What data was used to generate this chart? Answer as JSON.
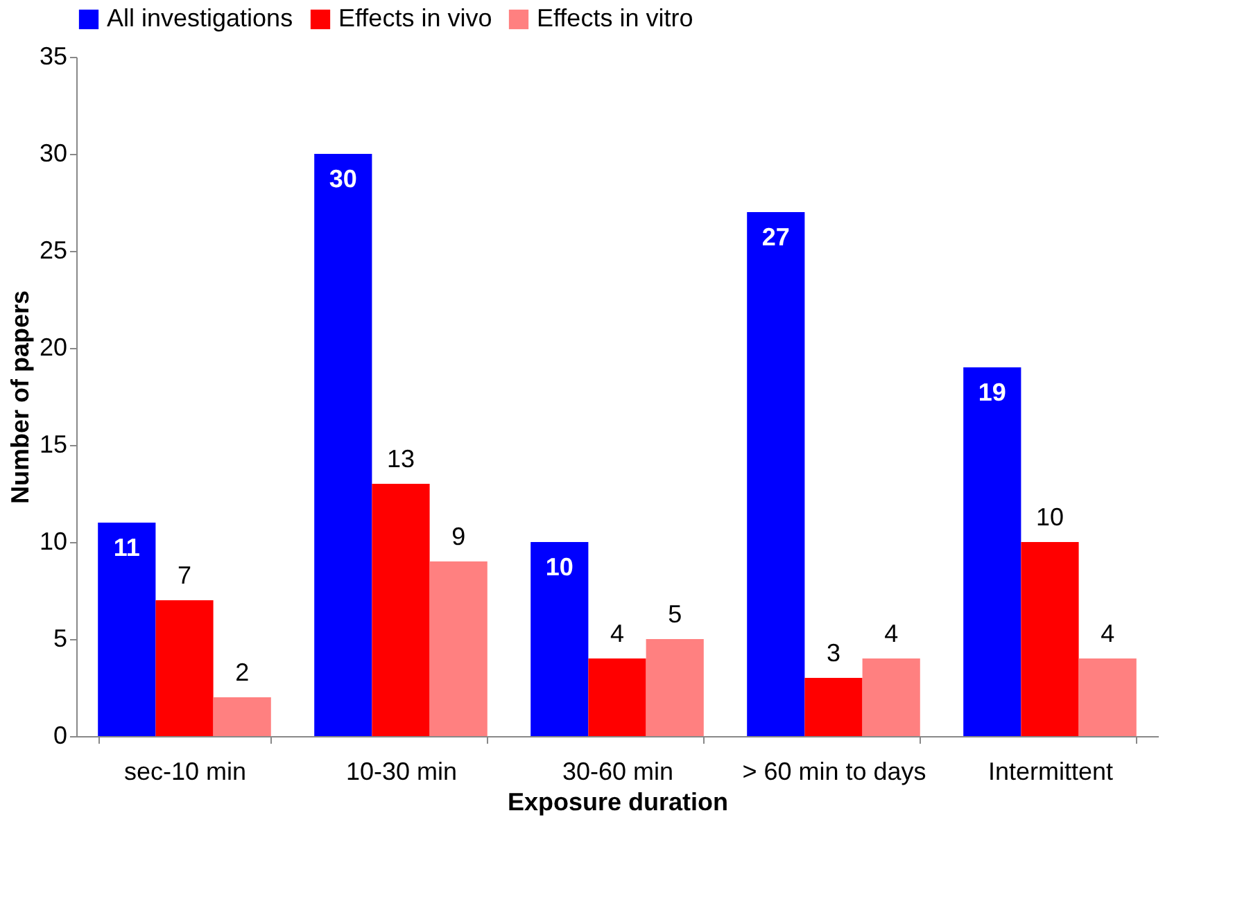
{
  "chart_data": {
    "type": "bar",
    "xlabel": "Exposure duration",
    "ylabel": "Number of papers",
    "categories": [
      "sec-10 min",
      "10-30 min",
      "30-60 min",
      "> 60 min to days",
      "Intermittent"
    ],
    "series": [
      {
        "name": "All investigations",
        "color": "#0000ff",
        "values": [
          11,
          30,
          10,
          27,
          19
        ]
      },
      {
        "name": "Effects in vivo",
        "color": "#ff0000",
        "values": [
          7,
          13,
          4,
          3,
          10
        ]
      },
      {
        "name": "Effects in vitro",
        "color": "#ff8080",
        "values": [
          2,
          9,
          5,
          4,
          4
        ]
      }
    ],
    "ylim": [
      0,
      35
    ],
    "yticks": [
      0,
      5,
      10,
      15,
      20,
      25,
      30,
      35
    ],
    "grid": false,
    "legend": "top",
    "data_labels": true
  }
}
